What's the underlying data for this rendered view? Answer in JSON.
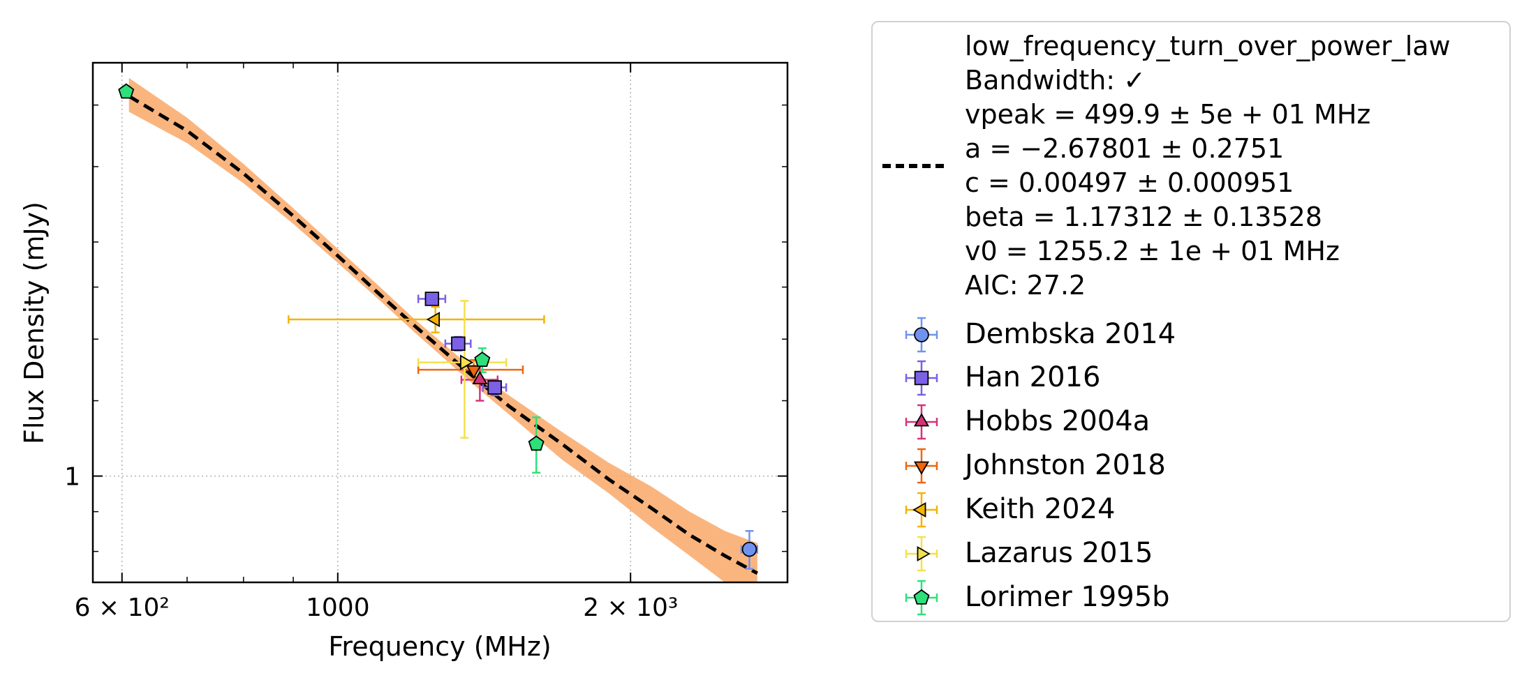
{
  "chart_data": {
    "type": "scatter",
    "xlabel": "Frequency (MHz)",
    "ylabel": "Flux Density (mJy)",
    "x_scale": "log",
    "y_scale": "log",
    "xlim": [
      560,
      2900
    ],
    "ylim": [
      0.73,
      3.4
    ],
    "x_ticks": [
      {
        "value": 600,
        "label": "6 × 10²"
      },
      {
        "value": 1000,
        "label": "1000"
      },
      {
        "value": 2000,
        "label": "2 × 10³"
      }
    ],
    "y_ticks": [
      {
        "value": 1,
        "label": "1"
      }
    ],
    "grid": "dotted, major ticks only",
    "fit": {
      "model": "low_frequency_turn_over_power_law",
      "legend_lines": [
        "low_frequency_turn_over_power_law",
        "Bandwidth: ✓",
        "vpeak = 499.9 ± 5e + 01 MHz",
        "a = −2.67801 ± 0.2751",
        "c = 0.00497 ± 0.000951",
        "beta = 1.17312 ± 0.13528",
        "v0 = 1255.2 ± 1e + 01 MHz",
        "AIC: 27.2"
      ],
      "line_color": "#000000",
      "band_color": "#f9a868",
      "curve": [
        {
          "x": 610,
          "y": 3.08,
          "lo": 2.94,
          "hi": 3.25
        },
        {
          "x": 700,
          "y": 2.78,
          "lo": 2.68,
          "hi": 2.89
        },
        {
          "x": 800,
          "y": 2.45,
          "lo": 2.38,
          "hi": 2.52
        },
        {
          "x": 900,
          "y": 2.16,
          "lo": 2.11,
          "hi": 2.21
        },
        {
          "x": 1000,
          "y": 1.92,
          "lo": 1.88,
          "hi": 1.96
        },
        {
          "x": 1100,
          "y": 1.72,
          "lo": 1.69,
          "hi": 1.76
        },
        {
          "x": 1200,
          "y": 1.56,
          "lo": 1.53,
          "hi": 1.59
        },
        {
          "x": 1300,
          "y": 1.43,
          "lo": 1.4,
          "hi": 1.46
        },
        {
          "x": 1400,
          "y": 1.32,
          "lo": 1.29,
          "hi": 1.35
        },
        {
          "x": 1500,
          "y": 1.23,
          "lo": 1.2,
          "hi": 1.27
        },
        {
          "x": 1700,
          "y": 1.1,
          "lo": 1.05,
          "hi": 1.14
        },
        {
          "x": 1900,
          "y": 0.99,
          "lo": 0.95,
          "hi": 1.04
        },
        {
          "x": 2100,
          "y": 0.91,
          "lo": 0.86,
          "hi": 0.97
        },
        {
          "x": 2300,
          "y": 0.84,
          "lo": 0.79,
          "hi": 0.9
        },
        {
          "x": 2500,
          "y": 0.79,
          "lo": 0.73,
          "hi": 0.85
        },
        {
          "x": 2700,
          "y": 0.75,
          "lo": 0.69,
          "hi": 0.82
        }
      ]
    },
    "series": [
      {
        "name": "Dembska 2014",
        "marker": "circle",
        "fill": "#6f93ee",
        "err_color": "#6f93ee",
        "points": [
          {
            "x": 2650,
            "y": 0.805,
            "xerr": 50,
            "yerr": 0.045
          }
        ]
      },
      {
        "name": "Han 2016",
        "marker": "square",
        "fill": "#7b61e6",
        "err_color": "#7b61e6",
        "points": [
          {
            "x": 1250,
            "y": 1.69,
            "xerr": 40,
            "yerr": 0.03
          },
          {
            "x": 1330,
            "y": 1.48,
            "xerr": 40,
            "yerr": 0.03
          },
          {
            "x": 1450,
            "y": 1.3,
            "xerr": 40,
            "yerr": 0.03
          }
        ]
      },
      {
        "name": "Hobbs 2004a",
        "marker": "triangle-up",
        "fill": "#d6337a",
        "err_color": "#d6337a",
        "points": [
          {
            "x": 1400,
            "y": 1.33,
            "xerr": 60,
            "yerr": 0.08
          }
        ]
      },
      {
        "name": "Johnston 2018",
        "marker": "triangle-down",
        "fill": "#f0660f",
        "err_color": "#f0660f",
        "points": [
          {
            "x": 1380,
            "y": 1.37,
            "xerr": 170,
            "yerr": 0.04
          }
        ]
      },
      {
        "name": "Keith 2024",
        "marker": "triangle-left",
        "fill": "#f5b400",
        "err_color": "#f5b400",
        "points": [
          {
            "x": 1260,
            "y": 1.59,
            "xerr": 370,
            "yerr": 0.06
          }
        ]
      },
      {
        "name": "Lazarus 2015",
        "marker": "triangle-right",
        "fill": "#f4e04d",
        "err_color": "#f4e04d",
        "points": [
          {
            "x": 1350,
            "y": 1.4,
            "xerr": 140,
            "yerr": 0.28
          }
        ]
      },
      {
        "name": "Lorimer 1995b",
        "marker": "pentagon",
        "fill": "#2ee07a",
        "err_color": "#2ee07a",
        "points": [
          {
            "x": 606,
            "y": 3.12,
            "xerr": 0,
            "yerr": 0.05
          },
          {
            "x": 1408,
            "y": 1.41,
            "xerr": 0,
            "yerr": 0.05
          },
          {
            "x": 1600,
            "y": 1.1,
            "xerr": 0,
            "yerr": 0.09
          }
        ]
      }
    ]
  }
}
